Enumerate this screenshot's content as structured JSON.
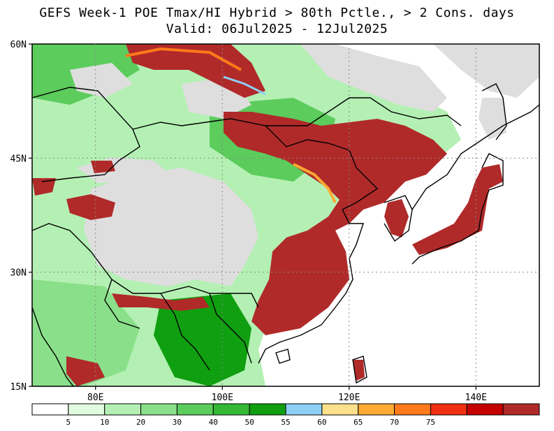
{
  "title_line1": "GEFS Week-1 POE Tmax/HI Hybrid > 80th Pctle., > 2 Cons. days",
  "title_line2": "Valid: 06Jul2025 - 12Jul2025",
  "map": {
    "lon_range": [
      70,
      150
    ],
    "lat_range": [
      15,
      60
    ],
    "lat_ticks": [
      {
        "value": 60,
        "label": "60N"
      },
      {
        "value": 45,
        "label": "45N"
      },
      {
        "value": 30,
        "label": "30N"
      },
      {
        "value": 15,
        "label": "15N"
      }
    ],
    "lon_ticks": [
      {
        "value": 80,
        "label": "80E"
      },
      {
        "value": 100,
        "label": "100E"
      },
      {
        "value": 120,
        "label": "120E"
      },
      {
        "value": 140,
        "label": "140E"
      }
    ],
    "gridlines": "dotted"
  },
  "colorbar": {
    "colors": [
      "#ffffff",
      "#e0fbe0",
      "#b4f0b4",
      "#8ae08a",
      "#5ccc5c",
      "#35b835",
      "#109f10",
      "#8ecff5",
      "#ffe08a",
      "#ffaa33",
      "#ff7a1a",
      "#f03010",
      "#c40000",
      "#b02a2a"
    ],
    "labels": [
      "5",
      "10",
      "20",
      "30",
      "40",
      "50",
      "55",
      "60",
      "65",
      "70",
      "75"
    ]
  },
  "colors": {
    "no_data_gray": "#dedede",
    "green_low": "#b4f0b4",
    "green_mid": "#5ccc5c",
    "green_high": "#109f10",
    "dark_red": "#b02a2a"
  }
}
